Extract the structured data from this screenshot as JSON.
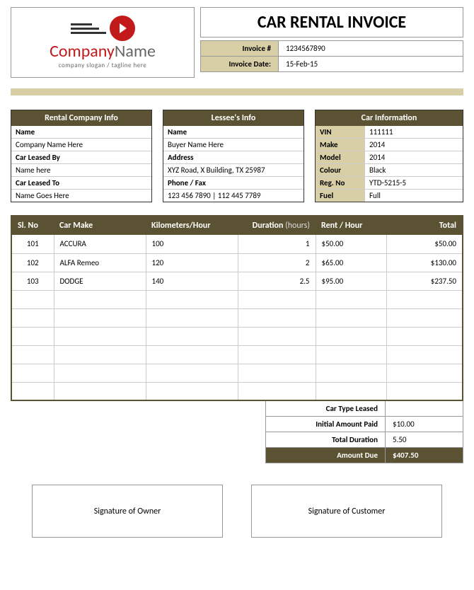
{
  "title": "CAR RENTAL INVOICE",
  "logo": {
    "name_part1": "Company",
    "name_part2": "Name",
    "slogan": "company slogan / tagline here",
    "accent_color": "#c21a1a"
  },
  "meta": {
    "invoice_no_label": "Invoice #",
    "invoice_no": "1234567890",
    "invoice_date_label": "Invoice Date:",
    "invoice_date": "15-Feb-15"
  },
  "colors": {
    "dark": "#5a5232",
    "light": "#d8cfa6"
  },
  "company_info": {
    "header": "Rental Company Info",
    "labels": [
      "Name",
      "Car Leased By",
      "Car Leased To"
    ],
    "values": [
      "Company Name Here",
      "Name here",
      "Name Goes Here"
    ]
  },
  "lessee_info": {
    "header": "Lessee's Info",
    "labels": [
      "Name",
      "Address",
      "Phone / Fax"
    ],
    "values": [
      "Buyer Name Here",
      "XYZ Road, X Building, TX 25987",
      "123 456 7890 | 112 445 7789"
    ]
  },
  "car_info": {
    "header": "Car Information",
    "rows": [
      {
        "label": "VIN",
        "value": "111111"
      },
      {
        "label": "Make",
        "value": "2014"
      },
      {
        "label": "Model",
        "value": "2014"
      },
      {
        "label": "Colour",
        "value": "Black"
      },
      {
        "label": "Reg. No",
        "value": "YTD-5215-5"
      },
      {
        "label": "Fuel",
        "value": "Full"
      }
    ]
  },
  "line_items": {
    "columns": [
      "Sl. No",
      "Car Make",
      "Kilometers/Hour",
      "Duration",
      "Rent / Hour",
      "Total"
    ],
    "duration_unit": "(hours)",
    "rows": [
      {
        "sl": "101",
        "make": "ACCURA",
        "km": "100",
        "dur": "1",
        "rent": "$50.00",
        "total": "$50.00"
      },
      {
        "sl": "102",
        "make": "ALFA Remeo",
        "km": "120",
        "dur": "2",
        "rent": "$65.00",
        "total": "$130.00"
      },
      {
        "sl": "103",
        "make": "DODGE",
        "km": "140",
        "dur": "2.5",
        "rent": "$95.00",
        "total": "$237.50"
      }
    ],
    "empty_rows": 6
  },
  "summary": {
    "car_type_label": "Car Type Leased",
    "car_type_value": "",
    "initial_label": "Initial Amount Paid",
    "initial_value": "$10.00",
    "duration_label": "Total Duration",
    "duration_value": "5.50",
    "due_label": "Amount Due",
    "due_value": "$407.50"
  },
  "signatures": {
    "owner": "Signature of Owner",
    "customer": "Signature of Customer"
  }
}
